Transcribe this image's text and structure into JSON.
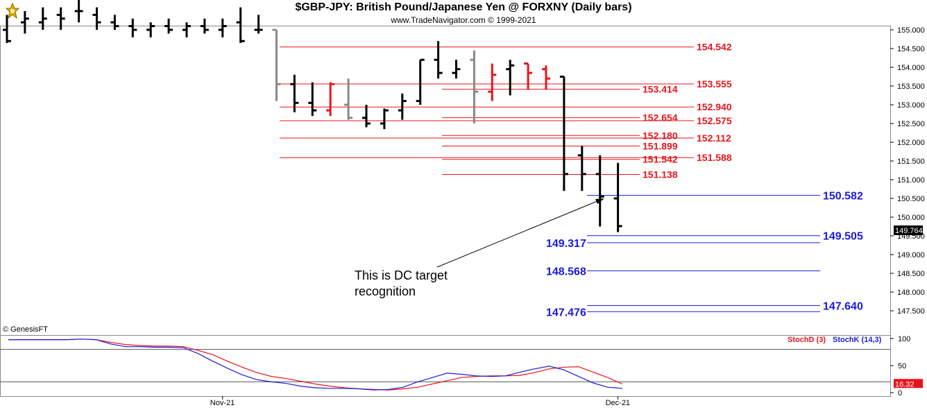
{
  "header": {
    "title": "$GBP-JPY:  British Pound/Japanese Yen @ FORXNY  (Daily bars)",
    "subtitle": "www.TradeNavigator.com © 1999-2021",
    "credit": "© GenesisFT"
  },
  "chart_data": {
    "type": "ohlc",
    "y_ticks": [
      "155.000",
      "154.500",
      "154.000",
      "153.500",
      "153.000",
      "152.500",
      "152.000",
      "151.500",
      "151.000",
      "150.500",
      "150.000",
      "149.500",
      "149.000",
      "148.500",
      "148.000",
      "147.500"
    ],
    "ylim": [
      147.2,
      155.1
    ],
    "x_labels": [
      {
        "text": "Nov-21",
        "index": 12
      },
      {
        "text": "Dec-21",
        "index": 34
      }
    ],
    "last_price": "149.764",
    "bars": [
      {
        "o": 155.0,
        "h": 155.4,
        "l": 154.65,
        "c": 154.7,
        "color": "#000000"
      },
      {
        "o": 155.2,
        "h": 155.5,
        "l": 154.9,
        "c": 155.3,
        "color": "#000000"
      },
      {
        "o": 155.2,
        "h": 155.6,
        "l": 155.0,
        "c": 155.3,
        "color": "#000000"
      },
      {
        "o": 155.4,
        "h": 155.6,
        "l": 155.0,
        "c": 155.3,
        "color": "#000000"
      },
      {
        "o": 155.5,
        "h": 155.8,
        "l": 155.2,
        "c": 155.5,
        "color": "#000000"
      },
      {
        "o": 155.4,
        "h": 155.6,
        "l": 155.0,
        "c": 155.2,
        "color": "#000000"
      },
      {
        "o": 155.2,
        "h": 155.4,
        "l": 155.0,
        "c": 155.1,
        "color": "#000000"
      },
      {
        "o": 155.1,
        "h": 155.3,
        "l": 154.8,
        "c": 155.0,
        "color": "#000000"
      },
      {
        "o": 155.0,
        "h": 155.2,
        "l": 154.8,
        "c": 155.1,
        "color": "#000000"
      },
      {
        "o": 155.1,
        "h": 155.3,
        "l": 154.9,
        "c": 155.0,
        "color": "#000000"
      },
      {
        "o": 155.0,
        "h": 155.2,
        "l": 154.8,
        "c": 155.1,
        "color": "#000000"
      },
      {
        "o": 155.1,
        "h": 155.3,
        "l": 154.9,
        "c": 155.0,
        "color": "#000000"
      },
      {
        "o": 155.0,
        "h": 155.3,
        "l": 154.8,
        "c": 155.1,
        "color": "#000000"
      },
      {
        "o": 155.2,
        "h": 155.6,
        "l": 154.65,
        "c": 154.7,
        "color": "#000000"
      },
      {
        "o": 155.0,
        "h": 155.4,
        "l": 154.9,
        "c": 155.0,
        "color": "#000000"
      },
      {
        "o": 155.0,
        "h": 155.0,
        "l": 153.1,
        "c": 153.55,
        "color": "#888888"
      },
      {
        "o": 153.55,
        "h": 153.8,
        "l": 152.8,
        "c": 153.05,
        "color": "#000000"
      },
      {
        "o": 153.05,
        "h": 153.6,
        "l": 152.7,
        "c": 152.85,
        "color": "#000000"
      },
      {
        "o": 152.85,
        "h": 153.6,
        "l": 152.7,
        "c": 153.55,
        "color": "#e8141b"
      },
      {
        "o": 153.0,
        "h": 153.7,
        "l": 152.6,
        "c": 152.65,
        "color": "#888888"
      },
      {
        "o": 152.65,
        "h": 153.0,
        "l": 152.4,
        "c": 152.5,
        "color": "#000000"
      },
      {
        "o": 152.5,
        "h": 152.9,
        "l": 152.35,
        "c": 152.85,
        "color": "#000000"
      },
      {
        "o": 152.85,
        "h": 153.3,
        "l": 152.6,
        "c": 153.1,
        "color": "#000000"
      },
      {
        "o": 153.1,
        "h": 154.2,
        "l": 153.0,
        "c": 154.2,
        "color": "#000000"
      },
      {
        "o": 154.2,
        "h": 154.7,
        "l": 153.7,
        "c": 153.85,
        "color": "#000000"
      },
      {
        "o": 153.85,
        "h": 154.2,
        "l": 153.7,
        "c": 153.95,
        "color": "#000000"
      },
      {
        "o": 154.2,
        "h": 154.45,
        "l": 152.5,
        "c": 153.35,
        "color": "#888888"
      },
      {
        "o": 153.35,
        "h": 154.1,
        "l": 153.1,
        "c": 153.8,
        "color": "#e8141b"
      },
      {
        "o": 153.95,
        "h": 154.2,
        "l": 153.25,
        "c": 154.05,
        "color": "#000000"
      },
      {
        "o": 154.1,
        "h": 154.1,
        "l": 153.4,
        "c": 153.85,
        "color": "#e8141b"
      },
      {
        "o": 153.95,
        "h": 154.05,
        "l": 153.4,
        "c": 153.7,
        "color": "#e8141b"
      },
      {
        "o": 153.75,
        "h": 153.75,
        "l": 150.7,
        "c": 151.15,
        "color": "#000000"
      },
      {
        "o": 151.65,
        "h": 151.9,
        "l": 150.7,
        "c": 151.15,
        "color": "#000000"
      },
      {
        "o": 151.15,
        "h": 151.65,
        "l": 149.75,
        "c": 150.55,
        "color": "#000000"
      },
      {
        "o": 150.5,
        "h": 151.45,
        "l": 149.6,
        "c": 149.76,
        "color": "#000000"
      }
    ],
    "levels_red_right": [
      "154.542",
      "153.555",
      "152.940",
      "152.575",
      "152.112",
      "151.588"
    ],
    "levels_red_mid": [
      "153.414",
      "152.654",
      "152.180",
      "151.899",
      "151.542",
      "151.138"
    ],
    "levels_blue_right": [
      "150.582",
      "149.505",
      "147.640"
    ],
    "levels_blue_left": [
      "149.317",
      "148.568",
      "147.476"
    ],
    "annotation": {
      "line1": "This is DC target",
      "line2": "recognition"
    },
    "indicator": {
      "stochd_label": "StochD (3)",
      "stochk_label": "StochK (14,3)",
      "y_ticks": [
        "100",
        "50",
        "0"
      ],
      "stochd_value": "16.32",
      "stochd_color": "#e8141b",
      "stochk_color": "#1a1adb",
      "stochd": [
        98,
        98,
        98,
        98,
        98,
        99,
        98,
        93,
        89,
        87,
        86,
        86,
        85,
        78,
        70,
        58,
        47,
        37,
        30,
        26,
        21,
        16,
        12,
        9,
        7,
        6,
        5,
        7,
        10,
        16,
        22,
        28,
        30,
        31,
        31,
        32,
        37,
        44,
        47,
        48,
        38,
        28,
        16
      ],
      "stochk": [
        98,
        98,
        98,
        98,
        98,
        99,
        98,
        90,
        85,
        85,
        84,
        84,
        83,
        72,
        58,
        45,
        33,
        24,
        20,
        17,
        12,
        9,
        8,
        8,
        7,
        5,
        6,
        10,
        20,
        28,
        36,
        34,
        31,
        30,
        31,
        38,
        44,
        49,
        42,
        30,
        18,
        10,
        8
      ]
    }
  }
}
